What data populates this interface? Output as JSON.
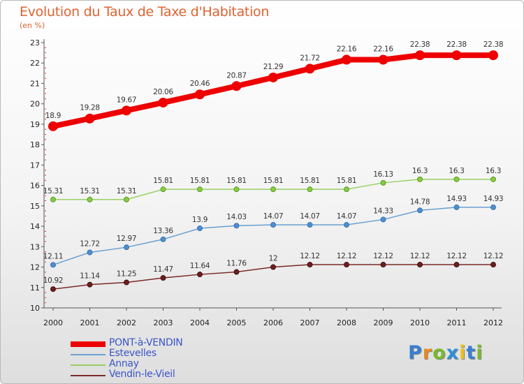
{
  "title": "Evolution du Taux de Taxe d'Habitation",
  "subtitle": "(en %)",
  "logo": {
    "letters": [
      "P",
      "r",
      "o",
      "x",
      "i",
      "t",
      "i"
    ],
    "colors": [
      "#3a7fd0",
      "#e88a20",
      "#7ab82c",
      "#2f8fd8",
      "#e8c020",
      "#3a7fd0",
      "#7ab82c"
    ]
  },
  "chart_data": {
    "type": "line",
    "title": "Evolution du Taux de Taxe d'Habitation",
    "ylabel": "(en %)",
    "xlabel": "",
    "x": [
      "2000",
      "2001",
      "2002",
      "2003",
      "2004",
      "2005",
      "2006",
      "2007",
      "2008",
      "2009",
      "2010",
      "2011",
      "2012"
    ],
    "ylim": [
      10,
      23
    ],
    "yticks": [
      "10",
      "11",
      "12",
      "13",
      "14",
      "15",
      "16",
      "17",
      "18",
      "19",
      "20",
      "21",
      "22",
      "23"
    ],
    "grid": false,
    "legend_position": "bottom-left",
    "series": [
      {
        "name": "PONT-à-VENDIN",
        "color": "#ee0000",
        "values": [
          18.9,
          19.28,
          19.67,
          20.06,
          20.46,
          20.87,
          21.29,
          21.72,
          22.16,
          22.16,
          22.38,
          22.38,
          22.38
        ],
        "labels": [
          "18.9",
          "19.28",
          "19.67",
          "20.06",
          "20.46",
          "20.87",
          "21.29",
          "21.72",
          "22.16",
          "22.16",
          "22.38",
          "22.38",
          "22.38"
        ]
      },
      {
        "name": "Estevelles",
        "color": "#6aa0d0",
        "values": [
          12.11,
          12.72,
          12.97,
          13.36,
          13.9,
          14.03,
          14.07,
          14.07,
          14.07,
          14.33,
          14.78,
          14.93,
          14.93
        ],
        "labels": [
          "12.11",
          "12.72",
          "12.97",
          "13.36",
          "13.9",
          "14.03",
          "14.07",
          "14.07",
          "14.07",
          "14.33",
          "14.78",
          "14.93",
          "14.93"
        ]
      },
      {
        "name": "Annay",
        "color": "#99d066",
        "values": [
          15.31,
          15.31,
          15.31,
          15.81,
          15.81,
          15.81,
          15.81,
          15.81,
          15.81,
          16.13,
          16.3,
          16.3,
          16.3
        ],
        "labels": [
          "15.31",
          "15.31",
          "15.31",
          "15.81",
          "15.81",
          "15.81",
          "15.81",
          "15.81",
          "15.81",
          "16.13",
          "16.3",
          "16.3",
          "16.3"
        ]
      },
      {
        "name": "Vendin-le-Vieil",
        "color": "#7a2a2a",
        "values": [
          10.92,
          11.14,
          11.25,
          11.47,
          11.64,
          11.76,
          12,
          12.12,
          12.12,
          12.12,
          12.12,
          12.12,
          12.12
        ],
        "labels": [
          "10.92",
          "11.14",
          "11.25",
          "11.47",
          "11.64",
          "11.76",
          "12",
          "12.12",
          "12.12",
          "12.12",
          "12.12",
          "12.12",
          "12.12"
        ]
      }
    ]
  }
}
